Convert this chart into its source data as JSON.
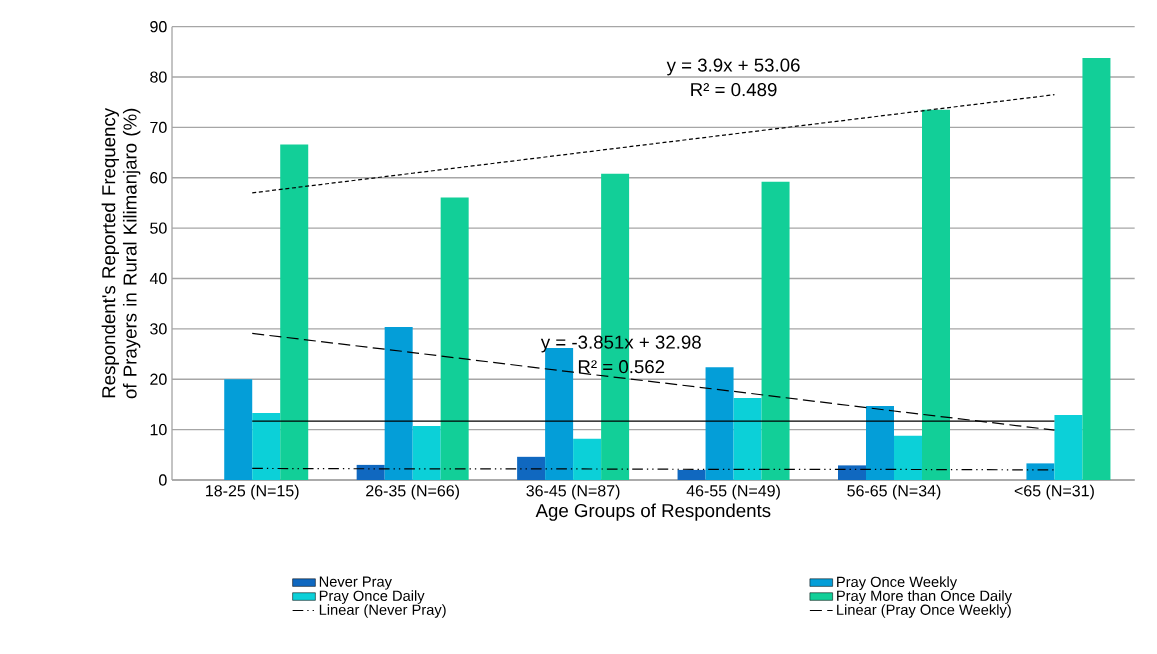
{
  "chart_data": {
    "type": "bar",
    "ylabel": "Respondent's Reported Frequency of Prayers  in Rural Kilimanjaro (%)",
    "xlabel": "Age Groups of Respondents",
    "categories": [
      "18-25 (N=15)",
      "26-35 (N=66)",
      "36-45 (N=87)",
      "46-55 (N=49)",
      "56-65 (N=34)",
      "<65 (N=31)"
    ],
    "series": [
      {
        "name": "Never Pray",
        "color": "#1068c0",
        "values": [
          0,
          3.0,
          4.6,
          2.0,
          2.9,
          0
        ]
      },
      {
        "name": "Pray Once Weekly",
        "color": "#049ed8",
        "values": [
          20.0,
          30.4,
          26.2,
          22.4,
          14.7,
          3.3
        ]
      },
      {
        "name": "Pray Once Daily",
        "color": "#0cd0d8",
        "values": [
          13.3,
          10.7,
          8.2,
          16.3,
          8.8,
          12.9
        ]
      },
      {
        "name": "Pray More than Once Daily",
        "color": "#12cf98",
        "values": [
          66.6,
          56.1,
          60.8,
          59.2,
          73.5,
          83.8
        ]
      },
      {
        "name": "Linear (Never Pray)",
        "type": "line",
        "color": "#000000",
        "line_style": "dashdot",
        "values": [
          2.3,
          2.2,
          2.2,
          2.1,
          2.1,
          2.0
        ]
      },
      {
        "name": "Linear (Pray Once Weekly)",
        "type": "line",
        "color": "#000000",
        "line_style": "dashed",
        "values": [
          29.1,
          25.3,
          21.4,
          17.6,
          13.7,
          9.9
        ]
      },
      {
        "type": "line",
        "color": "#000000",
        "line_style": "solid",
        "values": [
          11.7,
          11.7,
          11.7,
          11.7,
          11.7,
          11.7
        ]
      },
      {
        "type": "line",
        "color": "#000000",
        "line_style": "dotted",
        "values": [
          57.0,
          60.9,
          64.8,
          68.7,
          72.6,
          76.5
        ]
      }
    ],
    "ylim": [
      0,
      90
    ],
    "yticks": [
      0,
      10,
      20,
      30,
      40,
      50,
      60,
      70,
      80,
      90
    ],
    "grid": "y",
    "legend": "bottom",
    "annotations": [
      "y = 3.9x + 53.06",
      "R² = 0.489",
      "y = -3.851x + 32.98",
      "R² = 0.562"
    ]
  }
}
